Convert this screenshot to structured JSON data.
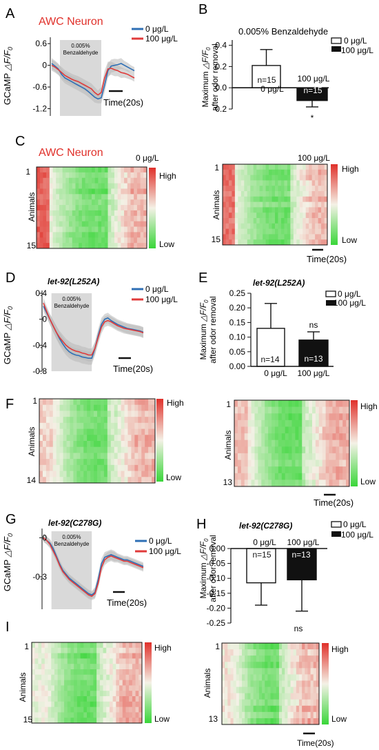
{
  "colors": {
    "control": "#2e6fb5",
    "treated": "#e03a3a",
    "band": "#b8b8b8",
    "stim": "#d9d9d9",
    "title_red": "#e0302a",
    "hm_low": "#39d639",
    "hm_mid": "#f4f1e6",
    "hm_high": "#e0302a"
  },
  "common": {
    "legend_control": "0 μg/L",
    "legend_treated": "100 μg/L",
    "stim_line1": "0.005%",
    "stim_line2": "Benzaldehyde",
    "scale_label": "Time(20s)",
    "gcamp_label": "GCaMP ",
    "dff_label": "△F/F",
    "dff_sub": "0",
    "bar_ylabel1": "Maximum ",
    "bar_ylabel2": "after  odor removal",
    "hm_ylabel": "Animals",
    "hm_high": "High",
    "hm_low": "Low",
    "x_cat_control": "0 μg/L",
    "x_cat_treated": "100 μg/L"
  },
  "panels": {
    "A": {
      "letter": "A",
      "title": "AWC Neuron"
    },
    "B": {
      "letter": "B",
      "title": "0.005% Benzaldehyde",
      "n_control": "n=15",
      "n_treated": "n=15",
      "sig": "*"
    },
    "C": {
      "letter": "C",
      "title": "AWC Neuron",
      "left_title": "0 μg/L",
      "right_title": "100 μg/L",
      "left_first": "1",
      "left_last": "15",
      "right_first": "1",
      "right_last": "15"
    },
    "D": {
      "letter": "D",
      "title": "let-92(L252A)"
    },
    "E": {
      "letter": "E",
      "title": "let-92(L252A)",
      "n_control": "n=14",
      "n_treated": "n=13",
      "sig": "ns"
    },
    "F": {
      "letter": "F",
      "left_first": "1",
      "left_last": "14",
      "right_first": "1",
      "right_last": "13"
    },
    "G": {
      "letter": "G",
      "title": "let-92(C278G)"
    },
    "H": {
      "letter": "H",
      "title": "let-92(C278G)",
      "n_control": "n=15",
      "n_treated": "n=13",
      "sig": "ns"
    },
    "I": {
      "letter": "I",
      "left_first": "1",
      "left_last": "15",
      "right_first": "1",
      "right_last": "13"
    }
  },
  "chart_data": [
    {
      "panel": "A",
      "type": "line",
      "ylim": [
        -1.4,
        0.7
      ],
      "yticks": [
        "0.6",
        "0",
        "-0.6",
        "-1.2"
      ],
      "ytick_values": [
        0.6,
        0,
        -0.6,
        -1.2
      ],
      "stim_x": [
        5,
        30
      ],
      "series": [
        {
          "name": "0 μg/L",
          "x": [
            0,
            2,
            4,
            6,
            8,
            10,
            12,
            14,
            16,
            18,
            20,
            22,
            24,
            26,
            28,
            30,
            32,
            34,
            36,
            38,
            40,
            42,
            44,
            46,
            48,
            50
          ],
          "y": [
            0.05,
            -0.02,
            -0.1,
            -0.25,
            -0.35,
            -0.4,
            -0.45,
            -0.5,
            -0.55,
            -0.6,
            -0.65,
            -0.72,
            -0.8,
            -0.88,
            -0.93,
            -0.9,
            -0.55,
            -0.15,
            -0.02,
            0.0,
            0.02,
            0.05,
            0.0,
            -0.05,
            -0.1,
            -0.15
          ]
        },
        {
          "name": "100 μg/L",
          "x": [
            0,
            2,
            4,
            6,
            8,
            10,
            12,
            14,
            16,
            18,
            20,
            22,
            24,
            26,
            28,
            30,
            32,
            34,
            36,
            38,
            40,
            42,
            44,
            46,
            48,
            50
          ],
          "y": [
            0.0,
            -0.05,
            -0.12,
            -0.2,
            -0.28,
            -0.33,
            -0.38,
            -0.42,
            -0.45,
            -0.5,
            -0.55,
            -0.6,
            -0.65,
            -0.75,
            -0.82,
            -0.75,
            -0.35,
            -0.1,
            -0.08,
            -0.12,
            -0.15,
            -0.2,
            -0.22,
            -0.25,
            -0.3,
            -0.35
          ]
        }
      ],
      "band": [
        0.15,
        0.15,
        0.15,
        0.15,
        0.15,
        0.15,
        0.15,
        0.15,
        0.15,
        0.15,
        0.15,
        0.15,
        0.15,
        0.15,
        0.12,
        0.15,
        0.2,
        0.2,
        0.18,
        0.18,
        0.15,
        0.15,
        0.12,
        0.12,
        0.1,
        0.1
      ]
    },
    {
      "panel": "B",
      "type": "bar",
      "categories": [
        "0 μg/L",
        "100 μg/L"
      ],
      "values": [
        0.21,
        -0.12
      ],
      "errors": [
        0.15,
        0.06
      ],
      "ylim": [
        -0.2,
        0.45
      ],
      "yticks": [
        "0.4",
        "0.2",
        "0.0",
        "-0.2"
      ],
      "ytick_values": [
        0.4,
        0.2,
        0.0,
        -0.2
      ]
    },
    {
      "panel": "D",
      "type": "line",
      "ylim": [
        -0.8,
        0.4
      ],
      "yticks": [
        "0.4",
        "0",
        "-0.4",
        "-0.8"
      ],
      "ytick_values": [
        0.4,
        0,
        -0.4,
        -0.8
      ],
      "stim_x": [
        5,
        30
      ],
      "series": [
        {
          "name": "0 μg/L",
          "x": [
            0,
            2,
            4,
            6,
            8,
            10,
            12,
            14,
            16,
            18,
            20,
            22,
            24,
            26,
            28,
            30,
            32,
            34,
            36,
            38,
            40,
            42,
            44,
            46,
            48,
            50,
            52,
            54,
            56,
            58,
            60,
            62
          ],
          "y": [
            0.2,
            0.1,
            0.0,
            -0.1,
            -0.2,
            -0.3,
            -0.38,
            -0.45,
            -0.5,
            -0.53,
            -0.55,
            -0.56,
            -0.58,
            -0.59,
            -0.6,
            -0.6,
            -0.45,
            -0.25,
            -0.08,
            0.0,
            0.02,
            -0.02,
            -0.05,
            -0.08,
            -0.1,
            -0.12,
            -0.14,
            -0.15,
            -0.16,
            -0.17,
            -0.18,
            -0.2
          ]
        },
        {
          "name": "100 μg/L",
          "x": [
            0,
            2,
            4,
            6,
            8,
            10,
            12,
            14,
            16,
            18,
            20,
            22,
            24,
            26,
            28,
            30,
            32,
            34,
            36,
            38,
            40,
            42,
            44,
            46,
            48,
            50,
            52,
            54,
            56,
            58,
            60,
            62
          ],
          "y": [
            0.25,
            0.12,
            0.0,
            -0.1,
            -0.2,
            -0.28,
            -0.34,
            -0.4,
            -0.44,
            -0.47,
            -0.49,
            -0.5,
            -0.52,
            -0.53,
            -0.55,
            -0.55,
            -0.45,
            -0.28,
            -0.12,
            -0.04,
            -0.02,
            -0.04,
            -0.07,
            -0.1,
            -0.12,
            -0.14,
            -0.15,
            -0.16,
            -0.17,
            -0.18,
            -0.19,
            -0.21
          ]
        }
      ],
      "band": [
        0.08,
        0.08,
        0.08,
        0.09,
        0.1,
        0.1,
        0.1,
        0.1,
        0.1,
        0.1,
        0.1,
        0.1,
        0.1,
        0.1,
        0.1,
        0.1,
        0.1,
        0.1,
        0.1,
        0.08,
        0.08,
        0.08,
        0.08,
        0.08,
        0.08,
        0.08,
        0.08,
        0.08,
        0.08,
        0.08,
        0.08,
        0.08
      ]
    },
    {
      "panel": "E",
      "type": "bar",
      "categories": [
        "0 μg/L",
        "100 μg/L"
      ],
      "values": [
        0.13,
        0.09
      ],
      "errors": [
        0.085,
        0.028
      ],
      "ylim": [
        0,
        0.25
      ],
      "yticks": [
        "0.00",
        "0.05",
        "0.10",
        "0.15",
        "0.20",
        "0.25"
      ],
      "ytick_values": [
        0,
        0.05,
        0.1,
        0.15,
        0.2,
        0.25
      ]
    },
    {
      "panel": "G",
      "type": "line",
      "ylim": [
        -0.55,
        0.05
      ],
      "yticks": [
        "0",
        "-0.3"
      ],
      "ytick_values": [
        0,
        -0.3
      ],
      "stim_x": [
        5,
        30
      ],
      "series": [
        {
          "name": "0 μg/L",
          "x": [
            0,
            2,
            4,
            6,
            8,
            10,
            12,
            14,
            16,
            18,
            20,
            22,
            24,
            26,
            28,
            30,
            32,
            34,
            36,
            38,
            40,
            42,
            44,
            46,
            48,
            50,
            52,
            54,
            56,
            58,
            60,
            62
          ],
          "y": [
            0.0,
            -0.02,
            -0.04,
            -0.08,
            -0.14,
            -0.2,
            -0.25,
            -0.28,
            -0.31,
            -0.33,
            -0.35,
            -0.37,
            -0.39,
            -0.41,
            -0.43,
            -0.44,
            -0.42,
            -0.32,
            -0.2,
            -0.15,
            -0.14,
            -0.13,
            -0.14,
            -0.15,
            -0.16,
            -0.17,
            -0.17,
            -0.18,
            -0.19,
            -0.2,
            -0.21,
            -0.22
          ]
        },
        {
          "name": "100 μg/L",
          "x": [
            0,
            2,
            4,
            6,
            8,
            10,
            12,
            14,
            16,
            18,
            20,
            22,
            24,
            26,
            28,
            30,
            32,
            34,
            36,
            38,
            40,
            42,
            44,
            46,
            48,
            50,
            52,
            54,
            56,
            58,
            60,
            62
          ],
          "y": [
            0.0,
            -0.02,
            -0.05,
            -0.1,
            -0.15,
            -0.21,
            -0.26,
            -0.29,
            -0.32,
            -0.34,
            -0.36,
            -0.38,
            -0.4,
            -0.42,
            -0.44,
            -0.45,
            -0.43,
            -0.35,
            -0.23,
            -0.17,
            -0.15,
            -0.14,
            -0.15,
            -0.16,
            -0.17,
            -0.18,
            -0.18,
            -0.19,
            -0.2,
            -0.21,
            -0.22,
            -0.23
          ]
        }
      ],
      "band": [
        0.03,
        0.03,
        0.03,
        0.03,
        0.03,
        0.03,
        0.03,
        0.03,
        0.03,
        0.03,
        0.03,
        0.03,
        0.03,
        0.03,
        0.03,
        0.03,
        0.04,
        0.04,
        0.04,
        0.04,
        0.04,
        0.04,
        0.04,
        0.03,
        0.03,
        0.03,
        0.03,
        0.03,
        0.03,
        0.03,
        0.03,
        0.03
      ]
    },
    {
      "panel": "H",
      "type": "bar",
      "categories": [
        "0 μg/L",
        "100 μg/L"
      ],
      "values": [
        -0.115,
        -0.105
      ],
      "errors": [
        0.075,
        0.105
      ],
      "ylim": [
        -0.25,
        0.0
      ],
      "yticks": [
        "0.00",
        "-0.05",
        "-0.10",
        "-0.15",
        "-0.20",
        "-0.25"
      ],
      "ytick_values": [
        0,
        -0.05,
        -0.1,
        -0.15,
        -0.2,
        -0.25
      ]
    },
    {
      "panel": "C",
      "type": "heatmap",
      "side": "left",
      "rows": 15,
      "cols": 34,
      "seed": 11,
      "stim": [
        0.1,
        0.65
      ],
      "peak": 0.85
    },
    {
      "panel": "C",
      "type": "heatmap",
      "side": "right",
      "rows": 15,
      "cols": 34,
      "seed": 23,
      "stim": [
        0.1,
        0.65
      ],
      "peak": 0.8
    },
    {
      "panel": "F",
      "type": "heatmap",
      "side": "left",
      "rows": 14,
      "cols": 34,
      "seed": 37,
      "stim": [
        0.12,
        0.6
      ],
      "peak": 0.55
    },
    {
      "panel": "F",
      "type": "heatmap",
      "side": "right",
      "rows": 13,
      "cols": 34,
      "seed": 41,
      "stim": [
        0.12,
        0.6
      ],
      "peak": 0.6
    },
    {
      "panel": "I",
      "type": "heatmap",
      "side": "left",
      "rows": 15,
      "cols": 34,
      "seed": 53,
      "stim": [
        0.12,
        0.6
      ],
      "peak": 0.45
    },
    {
      "panel": "I",
      "type": "heatmap",
      "side": "right",
      "rows": 13,
      "cols": 34,
      "seed": 67,
      "stim": [
        0.12,
        0.6
      ],
      "peak": 0.5
    }
  ]
}
